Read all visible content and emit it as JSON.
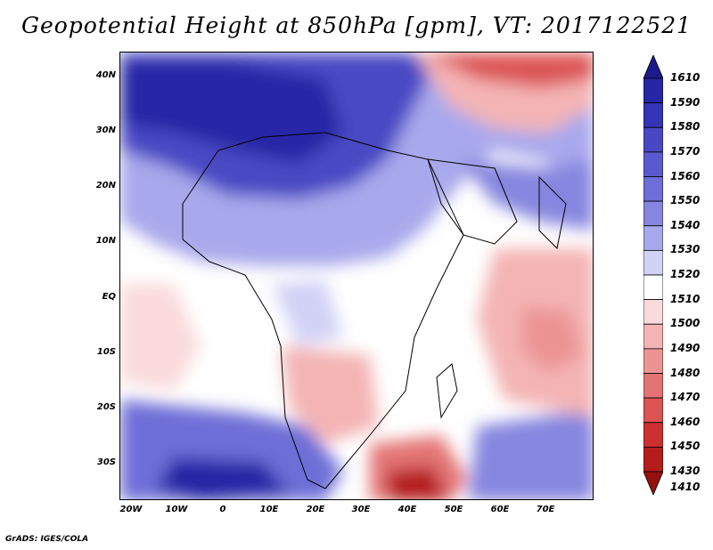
{
  "title": "Geopotential Height at 850hPa [gpm], VT: 2017122521",
  "credit": "GrADS: IGES/COLA",
  "lat_labels": [
    "40N",
    "30N",
    "20N",
    "10N",
    "EQ",
    "10S",
    "20S",
    "30S"
  ],
  "lon_labels": [
    "20W",
    "10W",
    "0",
    "10E",
    "20E",
    "30E",
    "40E",
    "50E",
    "60E",
    "70E"
  ],
  "colorbar": {
    "levels": [
      "1610",
      "1590",
      "1580",
      "1570",
      "1560",
      "1550",
      "1540",
      "1530",
      "1520",
      "1510",
      "1500",
      "1490",
      "1480",
      "1470",
      "1460",
      "1450",
      "1430",
      "1410"
    ],
    "colors": [
      "#1b1b8c",
      "#2626a6",
      "#3434b8",
      "#4848c4",
      "#5a5ad0",
      "#6e6ed8",
      "#8686e0",
      "#a8a8ec",
      "#d2d2f6",
      "#ffffff",
      "#fadada",
      "#f4b4b4",
      "#ec9494",
      "#e47474",
      "#dc5454",
      "#cc3030",
      "#b51c1c",
      "#961010"
    ]
  },
  "map": {
    "variable": "Geopotential Height",
    "level": "850hPa",
    "units": "gpm",
    "valid_time": "2017122521",
    "lon_range": [
      -23,
      80
    ],
    "lat_range": [
      -36,
      45
    ]
  }
}
